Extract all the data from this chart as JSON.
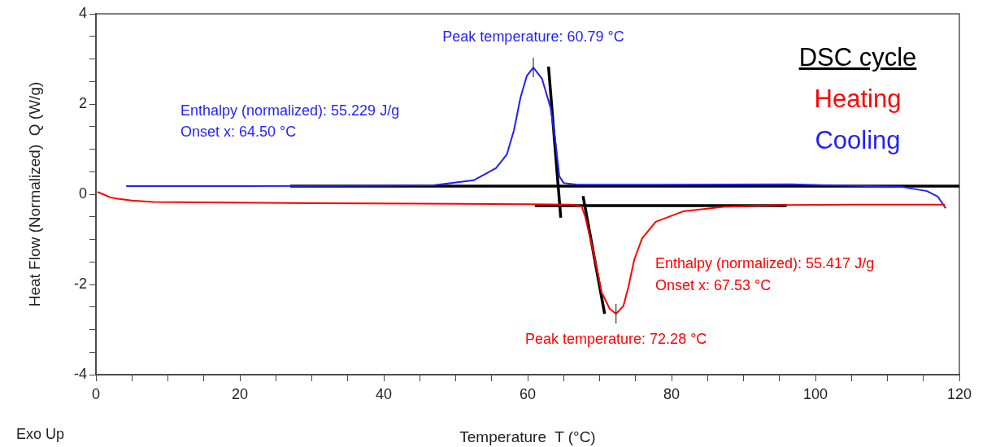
{
  "chart_data": {
    "type": "line",
    "xlabel": "Temperature  T (°C)",
    "ylabel": "Heat Flow (Normalized)  Q (W/g)",
    "legend_title": "DSC cycle",
    "legend": "top right",
    "marker": "none",
    "line_style": "solid",
    "grid": false,
    "xlim": [
      0,
      120
    ],
    "ylim": [
      -4,
      4
    ],
    "xticks": [
      0,
      {
        "value": 5,
        "label": null
      },
      {
        "value": 10,
        "label": null
      },
      {
        "value": 15,
        "label": null
      },
      20,
      {
        "value": 25,
        "label": null
      },
      {
        "value": 30,
        "label": null
      },
      {
        "value": 35,
        "label": null
      },
      40,
      {
        "value": 45,
        "label": null
      },
      {
        "value": 50,
        "label": null
      },
      {
        "value": 55,
        "label": null
      },
      60,
      {
        "value": 65,
        "label": null
      },
      {
        "value": 70,
        "label": null
      },
      {
        "value": 75,
        "label": null
      },
      80,
      {
        "value": 85,
        "label": null
      },
      {
        "value": 90,
        "label": null
      },
      {
        "value": 95,
        "label": null
      },
      100,
      {
        "value": 105,
        "label": null
      },
      {
        "value": 110,
        "label": null
      },
      {
        "value": 115,
        "label": null
      },
      120
    ],
    "yticks": [
      -4,
      {
        "value": -3.5,
        "label": null
      },
      {
        "value": -3,
        "label": null
      },
      {
        "value": -2.5,
        "label": null
      },
      -2,
      {
        "value": -1.5,
        "label": null
      },
      {
        "value": -1,
        "label": null
      },
      {
        "value": -0.5,
        "label": null
      },
      0,
      {
        "value": 0.5,
        "label": null
      },
      {
        "value": 1,
        "label": null
      },
      {
        "value": 1.5,
        "label": null
      },
      2,
      {
        "value": 2.5,
        "label": null
      },
      {
        "value": 3,
        "label": null
      },
      {
        "value": 3.5,
        "label": null
      },
      4
    ],
    "series": [
      {
        "name": "Heating",
        "color": "#ff0000",
        "x": [
          0.2,
          1,
          2,
          3,
          5,
          8,
          15,
          30,
          50,
          60,
          66,
          67.5,
          68,
          69.2,
          70.3,
          71.4,
          72.28,
          73.3,
          74,
          74.8,
          75.9,
          77.8,
          81.6,
          87.2,
          95,
          105,
          118
        ],
        "values": [
          0.05,
          0,
          -0.07,
          -0.1,
          -0.14,
          -0.17,
          -0.18,
          -0.2,
          -0.21,
          -0.22,
          -0.23,
          -0.27,
          -0.5,
          -1.33,
          -2.18,
          -2.54,
          -2.65,
          -2.48,
          -2.06,
          -1.46,
          -0.98,
          -0.61,
          -0.38,
          -0.28,
          -0.24,
          -0.23,
          -0.23
        ]
      },
      {
        "name": "Cooling",
        "color": "#1f1fff",
        "x": [
          4.2,
          20,
          40,
          46.9,
          52.5,
          55.6,
          57.1,
          58.1,
          59,
          59.9,
          60.79,
          62,
          63.2,
          63.9,
          64.4,
          65,
          66.9,
          78,
          96.6,
          112.1,
          115.5,
          117,
          118.1
        ],
        "values": [
          0.18,
          0.18,
          0.19,
          0.2,
          0.31,
          0.58,
          0.88,
          1.42,
          2.14,
          2.63,
          2.81,
          2.56,
          1.91,
          1.12,
          0.4,
          0.25,
          0.21,
          0.21,
          0.22,
          0.16,
          0.07,
          -0.05,
          -0.31
        ]
      },
      {
        "color": "#000000",
        "x": [
          27,
          120
        ],
        "values": [
          0.18,
          0.18
        ]
      },
      {
        "color": "#000000",
        "x": [
          62.9,
          64.6
        ],
        "values": [
          2.83,
          -0.52
        ]
      },
      {
        "color": "#000000",
        "x": [
          61,
          96
        ],
        "values": [
          -0.25,
          -0.25
        ]
      },
      {
        "color": "#000000",
        "x": [
          67.7,
          70.7
        ],
        "values": [
          -0.04,
          -2.65
        ]
      }
    ],
    "annotations": [
      {
        "text": "Peak temperature: 60.79 °C",
        "x": 60.79,
        "y": 2.81
      },
      "Enthalpy (normalized): 55.229 J/g",
      "Onset x: 64.50 °C",
      {
        "text": "Peak temperature: 72.28 °C",
        "x": 72.28,
        "y": -2.65
      },
      "Enthalpy (normalized): 55.417 J/g",
      "Onset x: 67.53 °C",
      "Exo Up"
    ]
  }
}
